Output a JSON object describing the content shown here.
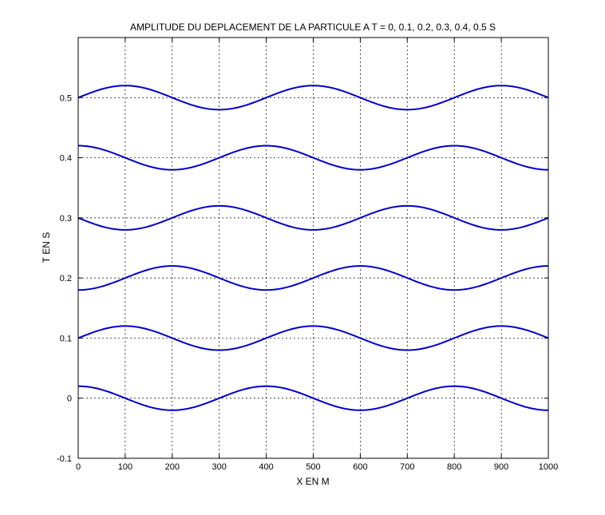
{
  "chart_data": {
    "type": "line",
    "title": "AMPLITUDE DU DEPLACEMENT DE LA PARTICULE A T = 0, 0.1, 0.2, 0.3, 0.4, 0.5 S",
    "xlabel": "X EN M",
    "ylabel": "T EN S",
    "xlim": [
      0,
      1000
    ],
    "ylim": [
      -0.1,
      0.6
    ],
    "xticks": [
      0,
      100,
      200,
      300,
      400,
      500,
      600,
      700,
      800,
      900,
      1000
    ],
    "yticks": [
      -0.1,
      0,
      0.1,
      0.2,
      0.3,
      0.4,
      0.5
    ],
    "ytick_labels": [
      "-0.1",
      "0",
      "0.1",
      "0.2",
      "0.3",
      "0.4",
      "0.5"
    ],
    "grid": true,
    "line_color": "#0000cc",
    "wave": {
      "amplitude": 0.02,
      "wavelength": 400,
      "period": 0.4,
      "x_step": 50
    },
    "series": [
      {
        "t": 0.0,
        "x": [
          0,
          50,
          100,
          150,
          200,
          250,
          300,
          350,
          400,
          450,
          500,
          550,
          600,
          650,
          700,
          750,
          800,
          850,
          900,
          950,
          1000
        ],
        "y": [
          0.02,
          0.0141,
          0.0,
          -0.0141,
          -0.02,
          -0.0141,
          0.0,
          0.0141,
          0.02,
          0.0141,
          0.0,
          -0.0141,
          -0.02,
          -0.0141,
          0.0,
          0.0141,
          0.02,
          0.0141,
          0.0,
          -0.0141,
          -0.02
        ]
      },
      {
        "t": 0.1,
        "x": [
          0,
          50,
          100,
          150,
          200,
          250,
          300,
          350,
          400,
          450,
          500,
          550,
          600,
          650,
          700,
          750,
          800,
          850,
          900,
          950,
          1000
        ],
        "y": [
          0.1,
          0.1141,
          0.12,
          0.1141,
          0.1,
          0.0859,
          0.08,
          0.0859,
          0.1,
          0.1141,
          0.12,
          0.1141,
          0.1,
          0.0859,
          0.08,
          0.0859,
          0.1,
          0.1141,
          0.12,
          0.1141,
          0.1
        ]
      },
      {
        "t": 0.2,
        "x": [
          0,
          50,
          100,
          150,
          200,
          250,
          300,
          350,
          400,
          450,
          500,
          550,
          600,
          650,
          700,
          750,
          800,
          850,
          900,
          950,
          1000
        ],
        "y": [
          0.18,
          0.1859,
          0.2,
          0.2141,
          0.22,
          0.2141,
          0.2,
          0.1859,
          0.18,
          0.1859,
          0.2,
          0.2141,
          0.22,
          0.2141,
          0.2,
          0.1859,
          0.18,
          0.1859,
          0.2,
          0.2141,
          0.22
        ]
      },
      {
        "t": 0.3,
        "x": [
          0,
          50,
          100,
          150,
          200,
          250,
          300,
          350,
          400,
          450,
          500,
          550,
          600,
          650,
          700,
          750,
          800,
          850,
          900,
          950,
          1000
        ],
        "y": [
          0.3,
          0.2859,
          0.28,
          0.2859,
          0.3,
          0.3141,
          0.32,
          0.3141,
          0.3,
          0.2859,
          0.28,
          0.2859,
          0.3,
          0.3141,
          0.32,
          0.3141,
          0.3,
          0.2859,
          0.28,
          0.2859,
          0.3
        ]
      },
      {
        "t": 0.4,
        "x": [
          0,
          50,
          100,
          150,
          200,
          250,
          300,
          350,
          400,
          450,
          500,
          550,
          600,
          650,
          700,
          750,
          800,
          850,
          900,
          950,
          1000
        ],
        "y": [
          0.42,
          0.4141,
          0.4,
          0.3859,
          0.38,
          0.3859,
          0.4,
          0.4141,
          0.42,
          0.4141,
          0.4,
          0.3859,
          0.38,
          0.3859,
          0.4,
          0.4141,
          0.42,
          0.4141,
          0.4,
          0.3859,
          0.38
        ]
      },
      {
        "t": 0.5,
        "x": [
          0,
          50,
          100,
          150,
          200,
          250,
          300,
          350,
          400,
          450,
          500,
          550,
          600,
          650,
          700,
          750,
          800,
          850,
          900,
          950,
          1000
        ],
        "y": [
          0.5,
          0.5141,
          0.52,
          0.5141,
          0.5,
          0.4859,
          0.48,
          0.4859,
          0.5,
          0.5141,
          0.52,
          0.5141,
          0.5,
          0.4859,
          0.48,
          0.4859,
          0.5,
          0.5141,
          0.52,
          0.5141,
          0.5
        ]
      }
    ]
  }
}
